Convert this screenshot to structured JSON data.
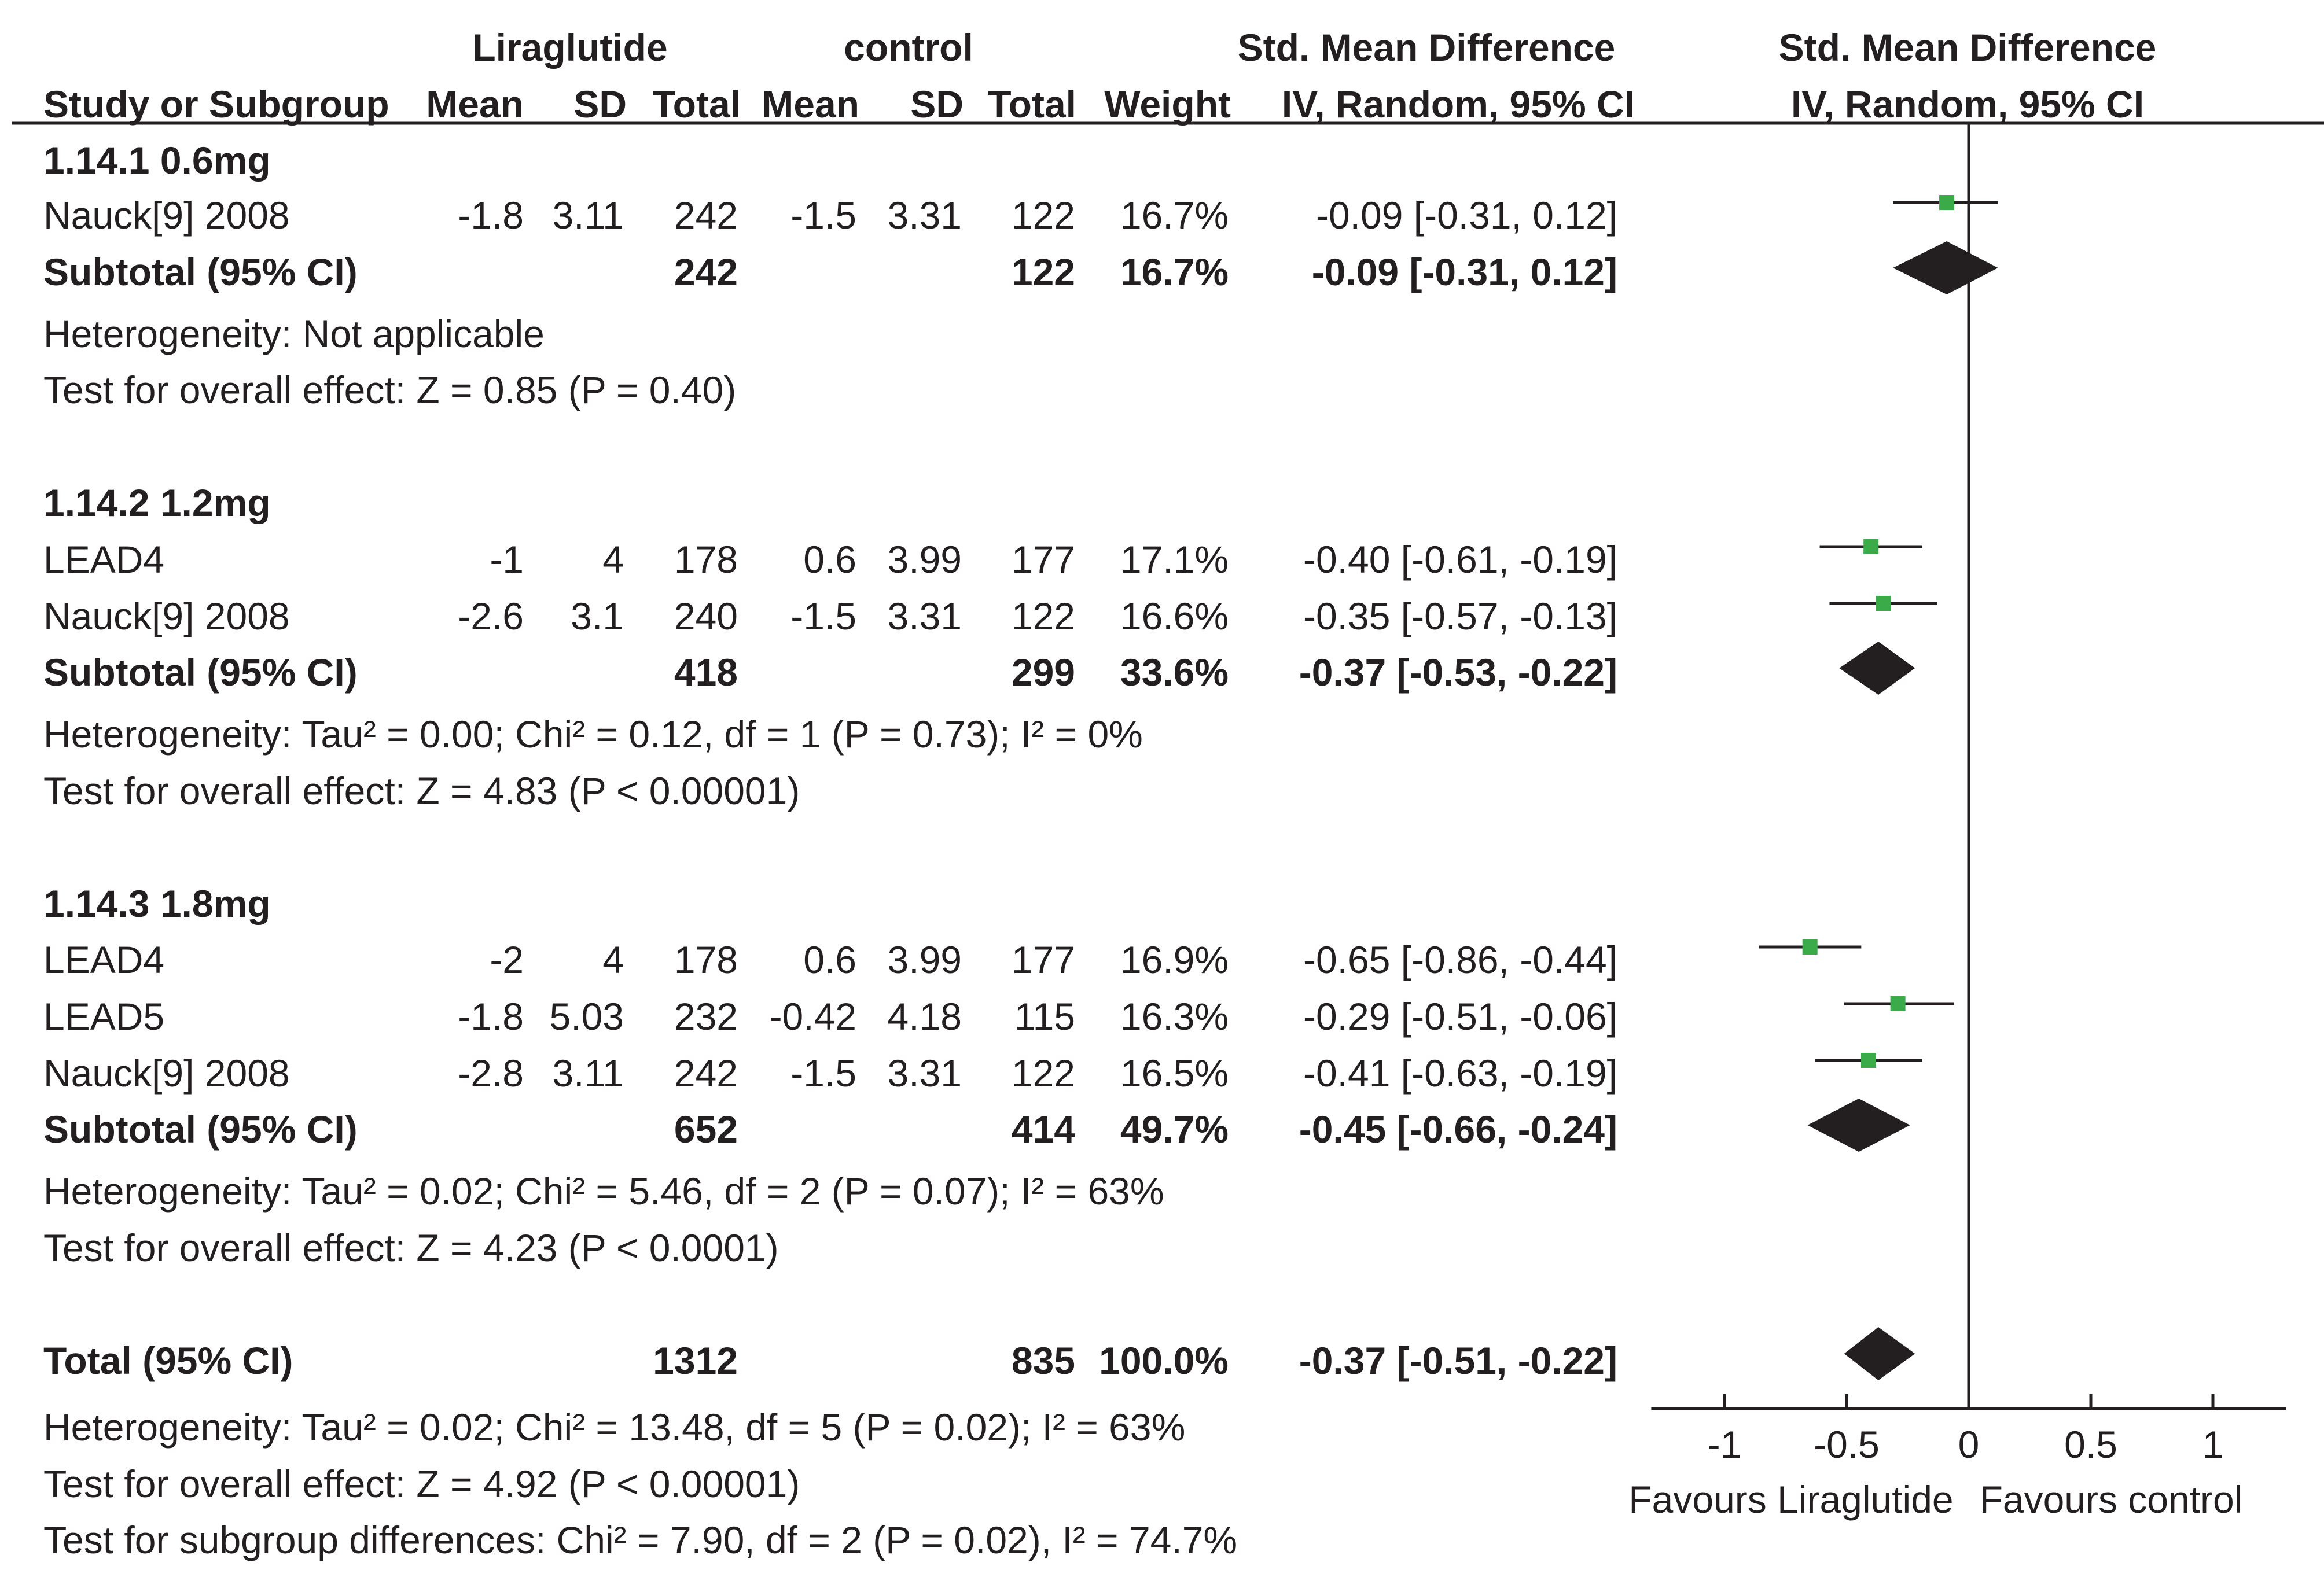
{
  "header": {
    "group1": "Liraglutide",
    "group2": "control",
    "smd_table": "Std. Mean Difference",
    "smd_plot": "Std. Mean Difference",
    "study_col": "Study or Subgroup",
    "mean": "Mean",
    "sd": "SD",
    "total": "Total",
    "weight": "Weight",
    "method_table": "IV, Random, 95% CI",
    "method_plot": "IV, Random, 95% CI"
  },
  "colors": {
    "marker": "#3aab48",
    "diamond": "#231f20",
    "text": "#231f20"
  },
  "chart_data": {
    "type": "forest",
    "x_axis": {
      "ticks": [
        -1,
        -0.5,
        0,
        0.5,
        1
      ],
      "tick_labels": [
        "-1",
        "-0.5",
        "0",
        "0.5",
        "1"
      ],
      "xlim": [
        -1.3,
        1.3
      ]
    },
    "favours_left": "Favours Liraglutide",
    "favours_right": "Favours control",
    "subgroups": [
      {
        "heading": "1.14.1 0.6mg",
        "studies": [
          {
            "name": "Nauck[9] 2008",
            "mean1": "-1.8",
            "sd1": "3.11",
            "total1": "242",
            "mean2": "-1.5",
            "sd2": "3.31",
            "total2": "122",
            "weight": "16.7%",
            "ci_text": "-0.09 [-0.31, 0.12]",
            "est": -0.09,
            "lo": -0.31,
            "hi": 0.12
          }
        ],
        "subtotal": {
          "label": "Subtotal (95% CI)",
          "total1": "242",
          "total2": "122",
          "weight": "16.7%",
          "ci_text": "-0.09 [-0.31, 0.12]",
          "est": -0.09,
          "lo": -0.31,
          "hi": 0.12
        },
        "heterogeneity": "Heterogeneity: Not applicable",
        "overall": "Test for overall effect: Z = 0.85 (P = 0.40)"
      },
      {
        "heading": "1.14.2 1.2mg",
        "studies": [
          {
            "name": "LEAD4",
            "mean1": "-1",
            "sd1": "4",
            "total1": "178",
            "mean2": "0.6",
            "sd2": "3.99",
            "total2": "177",
            "weight": "17.1%",
            "ci_text": "-0.40 [-0.61, -0.19]",
            "est": -0.4,
            "lo": -0.61,
            "hi": -0.19
          },
          {
            "name": "Nauck[9] 2008",
            "mean1": "-2.6",
            "sd1": "3.1",
            "total1": "240",
            "mean2": "-1.5",
            "sd2": "3.31",
            "total2": "122",
            "weight": "16.6%",
            "ci_text": "-0.35 [-0.57, -0.13]",
            "est": -0.35,
            "lo": -0.57,
            "hi": -0.13
          }
        ],
        "subtotal": {
          "label": "Subtotal (95% CI)",
          "total1": "418",
          "total2": "299",
          "weight": "33.6%",
          "ci_text": "-0.37 [-0.53, -0.22]",
          "est": -0.37,
          "lo": -0.53,
          "hi": -0.22
        },
        "heterogeneity": "Heterogeneity: Tau² = 0.00; Chi² = 0.12, df = 1 (P = 0.73); I² = 0%",
        "overall": "Test for overall effect: Z = 4.83 (P < 0.00001)"
      },
      {
        "heading": "1.14.3 1.8mg",
        "studies": [
          {
            "name": "LEAD4",
            "mean1": "-2",
            "sd1": "4",
            "total1": "178",
            "mean2": "0.6",
            "sd2": "3.99",
            "total2": "177",
            "weight": "16.9%",
            "ci_text": "-0.65 [-0.86, -0.44]",
            "est": -0.65,
            "lo": -0.86,
            "hi": -0.44
          },
          {
            "name": "LEAD5",
            "mean1": "-1.8",
            "sd1": "5.03",
            "total1": "232",
            "mean2": "-0.42",
            "sd2": "4.18",
            "total2": "115",
            "weight": "16.3%",
            "ci_text": "-0.29 [-0.51, -0.06]",
            "est": -0.29,
            "lo": -0.51,
            "hi": -0.06
          },
          {
            "name": "Nauck[9] 2008",
            "mean1": "-2.8",
            "sd1": "3.11",
            "total1": "242",
            "mean2": "-1.5",
            "sd2": "3.31",
            "total2": "122",
            "weight": "16.5%",
            "ci_text": "-0.41 [-0.63, -0.19]",
            "est": -0.41,
            "lo": -0.63,
            "hi": -0.19
          }
        ],
        "subtotal": {
          "label": "Subtotal (95% CI)",
          "total1": "652",
          "total2": "414",
          "weight": "49.7%",
          "ci_text": "-0.45 [-0.66, -0.24]",
          "est": -0.45,
          "lo": -0.66,
          "hi": -0.24
        },
        "heterogeneity": "Heterogeneity: Tau² = 0.02; Chi² = 5.46, df = 2 (P = 0.07); I² = 63%",
        "overall": "Test for overall effect: Z = 4.23 (P < 0.0001)"
      }
    ],
    "total": {
      "label": "Total (95% CI)",
      "total1": "1312",
      "total2": "835",
      "weight": "100.0%",
      "ci_text": "-0.37 [-0.51, -0.22]",
      "est": -0.37,
      "lo": -0.51,
      "hi": -0.22
    },
    "footer": [
      "Heterogeneity: Tau² = 0.02; Chi² = 13.48, df = 5 (P = 0.02); I² = 63%",
      "Test for overall effect: Z = 4.92 (P < 0.00001)",
      "Test for subgroup differences: Chi² = 7.90, df = 2 (P = 0.02), I² = 74.7%"
    ]
  }
}
